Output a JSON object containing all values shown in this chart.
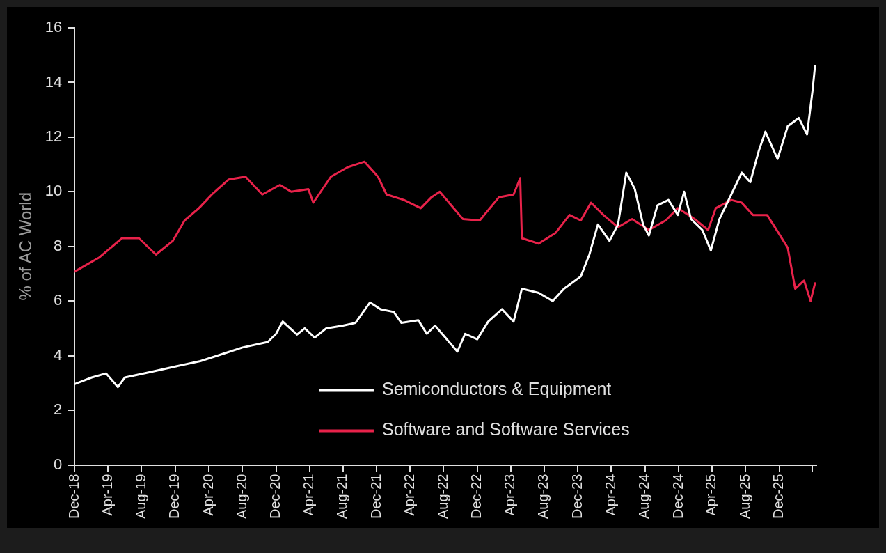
{
  "chart_data": {
    "type": "line",
    "ylabel": "% of AC World",
    "xlim": [
      "2018-12-01",
      "2026-04-15"
    ],
    "xticks": [
      {
        "value": "2018-12-01",
        "label": "Dec-18"
      },
      {
        "value": "2019-04-01",
        "label": "Apr-19"
      },
      {
        "value": "2019-08-01",
        "label": "Aug-19"
      },
      {
        "value": "2019-12-01",
        "label": "Dec-19"
      },
      {
        "value": "2020-04-01",
        "label": "Apr-20"
      },
      {
        "value": "2020-08-01",
        "label": "Aug-20"
      },
      {
        "value": "2020-12-01",
        "label": "Dec-20"
      },
      {
        "value": "2021-04-01",
        "label": "Apr-21"
      },
      {
        "value": "2021-08-01",
        "label": "Aug-21"
      },
      {
        "value": "2021-12-01",
        "label": "Dec-21"
      },
      {
        "value": "2022-04-01",
        "label": "Apr-22"
      },
      {
        "value": "2022-08-01",
        "label": "Aug-22"
      },
      {
        "value": "2022-12-01",
        "label": "Dec-22"
      },
      {
        "value": "2023-04-01",
        "label": "Apr-23"
      },
      {
        "value": "2023-08-01",
        "label": "Aug-23"
      },
      {
        "value": "2023-12-01",
        "label": "Dec-23"
      },
      {
        "value": "2024-04-01",
        "label": "Apr-24"
      },
      {
        "value": "2024-08-01",
        "label": "Aug-24"
      },
      {
        "value": "2024-12-01",
        "label": "Dec-24"
      },
      {
        "value": "2025-04-01",
        "label": "Apr-25"
      },
      {
        "value": "2025-08-01",
        "label": "Aug-25"
      },
      {
        "value": "2025-12-01",
        "label": "Dec-25"
      },
      {
        "value": "2026-04-01",
        "label": null
      }
    ],
    "ylim": [
      0,
      16
    ],
    "yticks": [
      0,
      2,
      4,
      6,
      8,
      10,
      12,
      14,
      16
    ],
    "grid": false,
    "legend": "bottom right",
    "marker": "none",
    "line_style": "solid",
    "series": [
      {
        "name": "Semiconductors & Equipment",
        "color": "#ffffff",
        "x": [
          "2018-12-01",
          "2019-02-01",
          "2019-03-25",
          "2019-05-07",
          "2019-06-01",
          "2019-09-01",
          "2019-12-01",
          "2020-03-01",
          "2020-06-01",
          "2020-08-01",
          "2020-11-01",
          "2020-12-01",
          "2020-12-25",
          "2021-02-15",
          "2021-03-15",
          "2021-04-20",
          "2021-06-01",
          "2021-08-01",
          "2021-09-15",
          "2021-11-07",
          "2021-12-15",
          "2022-02-01",
          "2022-03-01",
          "2022-05-01",
          "2022-06-01",
          "2022-07-01",
          "2022-09-20",
          "2022-10-18",
          "2022-12-01",
          "2023-01-10",
          "2023-03-01",
          "2023-04-12",
          "2023-05-12",
          "2023-07-12",
          "2023-09-01",
          "2023-10-12",
          "2023-12-12",
          "2024-01-12",
          "2024-02-12",
          "2024-03-25",
          "2024-04-25",
          "2024-05-25",
          "2024-06-25",
          "2024-07-25",
          "2024-08-15",
          "2024-09-15",
          "2024-10-25",
          "2024-11-28",
          "2024-12-21",
          "2025-01-15",
          "2025-02-25",
          "2025-03-28",
          "2025-04-28",
          "2025-06-10",
          "2025-07-18",
          "2025-08-18",
          "2025-09-18",
          "2025-10-12",
          "2025-11-25",
          "2026-01-01",
          "2026-02-10",
          "2026-03-12",
          "2026-04-01",
          "2026-04-10"
        ],
        "values": [
          2.96,
          3.2,
          3.35,
          2.85,
          3.2,
          3.4,
          3.6,
          3.8,
          4.1,
          4.3,
          4.5,
          4.8,
          5.25,
          4.77,
          5.0,
          4.66,
          5.0,
          5.1,
          5.2,
          5.95,
          5.7,
          5.6,
          5.2,
          5.3,
          4.8,
          5.1,
          4.15,
          4.8,
          4.6,
          5.25,
          5.7,
          5.25,
          6.45,
          6.3,
          6.0,
          6.45,
          6.9,
          7.7,
          8.8,
          8.2,
          8.8,
          10.7,
          10.1,
          8.8,
          8.4,
          9.5,
          9.7,
          9.15,
          10.0,
          9.0,
          8.6,
          7.85,
          9.0,
          9.9,
          10.7,
          10.35,
          11.5,
          12.2,
          11.2,
          12.4,
          12.7,
          12.1,
          13.7,
          14.6
        ]
      },
      {
        "name": "Software and Software Services",
        "color": "#e8224a",
        "x": [
          "2018-12-01",
          "2019-03-01",
          "2019-05-22",
          "2019-07-22",
          "2019-09-22",
          "2019-11-22",
          "2020-01-04",
          "2020-02-25",
          "2020-04-12",
          "2020-06-12",
          "2020-08-12",
          "2020-10-12",
          "2020-12-15",
          "2021-01-25",
          "2021-03-28",
          "2021-04-15",
          "2021-06-18",
          "2021-08-18",
          "2021-10-18",
          "2021-12-06",
          "2022-01-06",
          "2022-03-10",
          "2022-05-10",
          "2022-06-18",
          "2022-07-18",
          "2022-10-10",
          "2022-12-10",
          "2023-02-18",
          "2023-04-12",
          "2023-05-06",
          "2023-05-12",
          "2023-07-12",
          "2023-09-12",
          "2023-11-01",
          "2023-12-12",
          "2024-01-18",
          "2024-03-03",
          "2024-04-25",
          "2024-06-15",
          "2024-08-15",
          "2024-10-15",
          "2024-11-28",
          "2025-01-28",
          "2025-03-18",
          "2025-04-15",
          "2025-06-10",
          "2025-07-18",
          "2025-08-28",
          "2025-10-18",
          "2025-11-28",
          "2026-01-01",
          "2026-01-28",
          "2026-03-01",
          "2026-03-25",
          "2026-04-10"
        ],
        "values": [
          7.08,
          7.6,
          8.3,
          8.3,
          7.7,
          8.2,
          8.95,
          9.4,
          9.9,
          10.45,
          10.55,
          9.9,
          10.25,
          10.0,
          10.1,
          9.6,
          10.55,
          10.9,
          11.1,
          10.55,
          9.9,
          9.7,
          9.4,
          9.8,
          10.0,
          9.0,
          8.95,
          9.8,
          9.9,
          10.5,
          8.3,
          8.1,
          8.5,
          9.15,
          8.95,
          9.6,
          9.15,
          8.7,
          9.0,
          8.6,
          8.95,
          9.4,
          9.0,
          8.6,
          9.4,
          9.7,
          9.6,
          9.15,
          9.15,
          8.5,
          7.95,
          6.45,
          6.75,
          6.0,
          6.65
        ]
      }
    ]
  }
}
